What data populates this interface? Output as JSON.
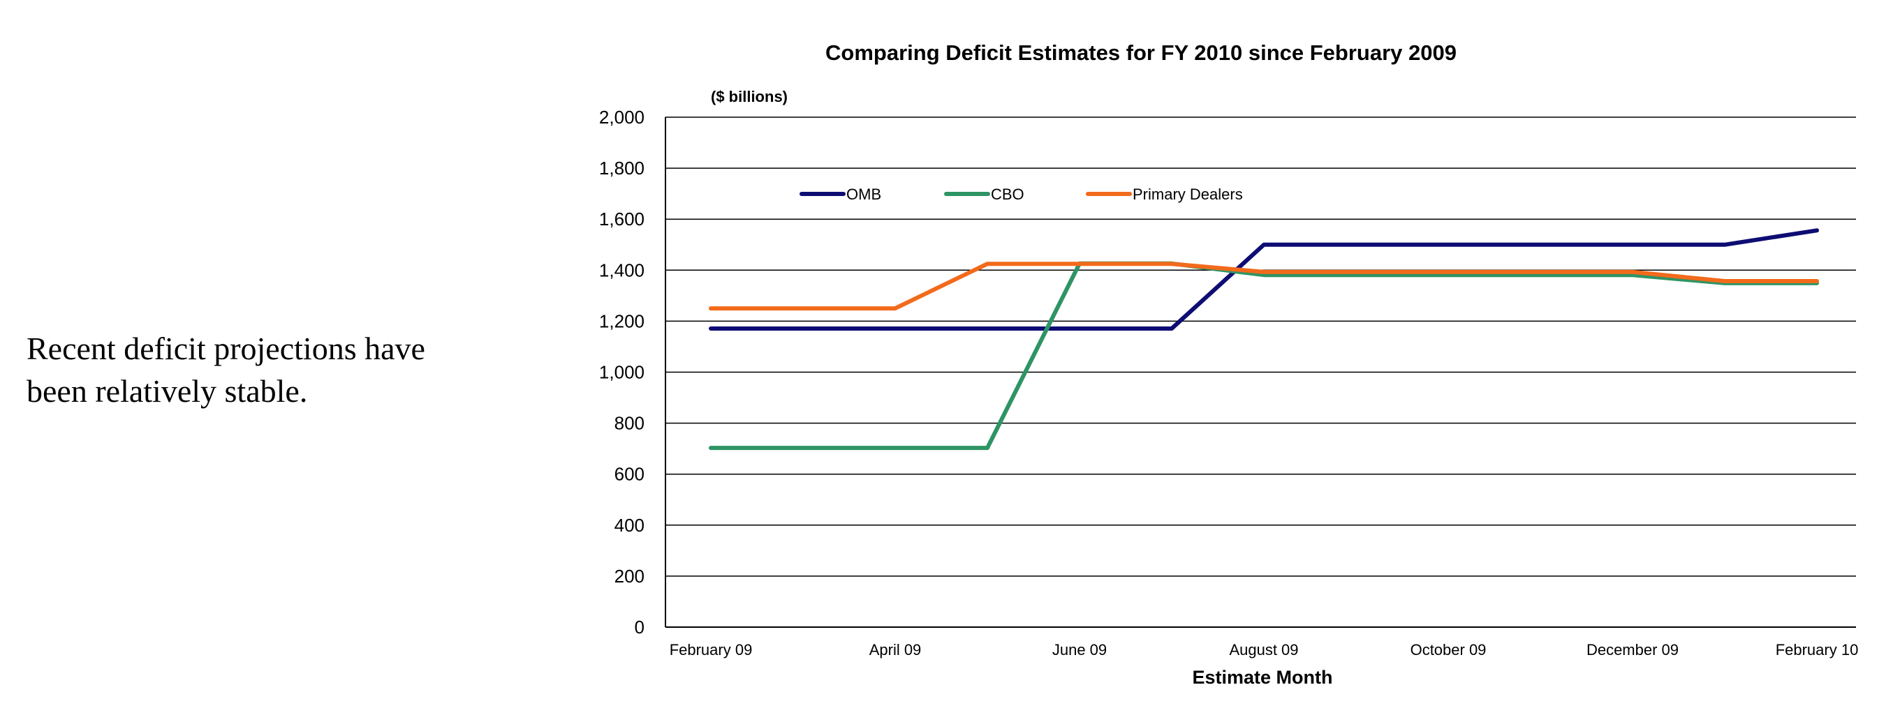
{
  "side_note": "Recent deficit projections have been relatively stable.",
  "chart_data": {
    "type": "line",
    "title": "Comparing Deficit Estimates for FY 2010 since February 2009",
    "unit_label": "($ billions)",
    "xlabel": "Estimate Month",
    "ylabel": "",
    "ylim": [
      0,
      2000
    ],
    "yticks": [
      0,
      200,
      400,
      600,
      800,
      1000,
      1200,
      1400,
      1600,
      1800,
      2000
    ],
    "ytick_labels": [
      "0",
      "200",
      "400",
      "600",
      "800",
      "1,000",
      "1,200",
      "1,400",
      "1,600",
      "1,800",
      "2,000"
    ],
    "x": [
      "2009-02",
      "2009-03",
      "2009-04",
      "2009-05",
      "2009-06",
      "2009-07",
      "2009-08",
      "2009-09",
      "2009-10",
      "2009-11",
      "2009-12",
      "2010-01",
      "2010-02"
    ],
    "xticks": [
      "February 09",
      "April 09",
      "June 09",
      "August 09",
      "October 09",
      "December 09",
      "February 10"
    ],
    "grid": true,
    "legend_position": "top-left",
    "series": [
      {
        "name": "OMB",
        "color": "#0d0d73",
        "values": [
          1171,
          1171,
          1171,
          1171,
          1171,
          1171,
          1500,
          1500,
          1500,
          1500,
          1500,
          1500,
          1556
        ]
      },
      {
        "name": "CBO",
        "color": "#2e9464",
        "values": [
          703,
          703,
          703,
          703,
          1426,
          1426,
          1381,
          1381,
          1381,
          1381,
          1381,
          1349,
          1349
        ]
      },
      {
        "name": "Primary Dealers",
        "color": "#f26a1b",
        "values": [
          1250,
          1250,
          1250,
          1425,
          1425,
          1425,
          1393,
          1393,
          1393,
          1393,
          1393,
          1357,
          1357
        ]
      }
    ]
  }
}
